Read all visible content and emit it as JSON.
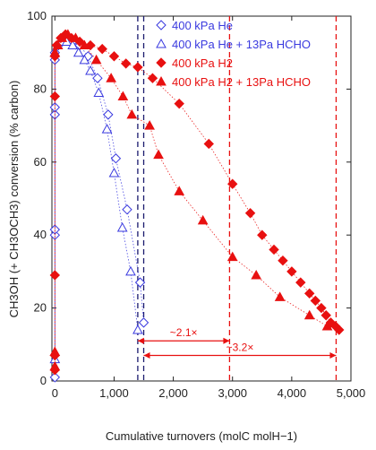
{
  "chart_data": {
    "type": "scatter",
    "xlabel": "Cumulative turnovers (molC molH−1)",
    "ylabel": "CH3OH (+ CH3OCH3) conversion (% carbon)",
    "xlim": [
      -50,
      5000
    ],
    "ylim": [
      0,
      100
    ],
    "x_ticks": [
      0,
      1000,
      2000,
      3000,
      4000,
      5000
    ],
    "x_tick_labels": [
      "0",
      "1,000",
      "2,000",
      "3,000",
      "4,000",
      "5,000"
    ],
    "y_ticks": [
      0,
      20,
      40,
      60,
      80,
      100
    ],
    "y_tick_labels": [
      "0",
      "20",
      "40",
      "60",
      "80",
      "100"
    ],
    "grid": false,
    "legend_position": "top-right",
    "series": [
      {
        "name": "400 kPa He",
        "marker": "diamond-open",
        "color": "#3a3adf",
        "points": [
          [
            0,
            1
          ],
          [
            0,
            40
          ],
          [
            0,
            41.5
          ],
          [
            0,
            73
          ],
          [
            0,
            75
          ],
          [
            0,
            88
          ],
          [
            0,
            90
          ],
          [
            60,
            92
          ],
          [
            120,
            94
          ],
          [
            200,
            94
          ],
          [
            300,
            93
          ],
          [
            420,
            92
          ],
          [
            560,
            89
          ],
          [
            720,
            83
          ],
          [
            900,
            73
          ],
          [
            1030,
            61
          ],
          [
            1220,
            47
          ],
          [
            1440,
            27
          ],
          [
            1500,
            16
          ]
        ]
      },
      {
        "name": "400 kPa He + 13Pa HCHO",
        "marker": "triangle-open",
        "color": "#3a3adf",
        "points": [
          [
            0,
            6
          ],
          [
            0,
            90
          ],
          [
            50,
            92
          ],
          [
            120,
            93
          ],
          [
            200,
            93
          ],
          [
            300,
            92
          ],
          [
            400,
            90
          ],
          [
            500,
            88
          ],
          [
            600,
            85
          ],
          [
            740,
            79
          ],
          [
            880,
            69
          ],
          [
            1000,
            57
          ],
          [
            1140,
            42
          ],
          [
            1280,
            30
          ],
          [
            1400,
            14
          ]
        ]
      },
      {
        "name": "400 kPa H2",
        "marker": "diamond-filled",
        "color": "#e81010",
        "points": [
          [
            0,
            3
          ],
          [
            0,
            7
          ],
          [
            0,
            29
          ],
          [
            0,
            78
          ],
          [
            0,
            89
          ],
          [
            30,
            92
          ],
          [
            100,
            94
          ],
          [
            180,
            95
          ],
          [
            280,
            94
          ],
          [
            420,
            93
          ],
          [
            600,
            92
          ],
          [
            800,
            91
          ],
          [
            1000,
            89
          ],
          [
            1200,
            87
          ],
          [
            1400,
            86
          ],
          [
            1650,
            83
          ],
          [
            2100,
            76
          ],
          [
            2600,
            65
          ],
          [
            3000,
            54
          ],
          [
            3300,
            46
          ],
          [
            3500,
            40
          ],
          [
            3700,
            36
          ],
          [
            3850,
            33
          ],
          [
            4000,
            30
          ],
          [
            4150,
            27
          ],
          [
            4300,
            24
          ],
          [
            4400,
            22
          ],
          [
            4500,
            20
          ],
          [
            4580,
            18
          ],
          [
            4660,
            16
          ],
          [
            4740,
            15
          ],
          [
            4800,
            14
          ]
        ]
      },
      {
        "name": "400 kPa H2 + 13Pa HCHO",
        "marker": "triangle-filled",
        "color": "#e81010",
        "points": [
          [
            0,
            4
          ],
          [
            0,
            8
          ],
          [
            0,
            90
          ],
          [
            50,
            92
          ],
          [
            120,
            94
          ],
          [
            220,
            95
          ],
          [
            350,
            94
          ],
          [
            500,
            92
          ],
          [
            700,
            88
          ],
          [
            950,
            83
          ],
          [
            1150,
            78
          ],
          [
            1300,
            73
          ],
          [
            1600,
            70
          ],
          [
            1750,
            62
          ],
          [
            2100,
            52
          ],
          [
            2500,
            44
          ],
          [
            3000,
            34
          ],
          [
            3400,
            29
          ],
          [
            3800,
            23
          ],
          [
            4300,
            18
          ],
          [
            4600,
            15
          ]
        ]
      }
    ],
    "dashed_lines": [
      {
        "x": 1400,
        "color": "#1a1a6e"
      },
      {
        "x": 1500,
        "color": "#1a1a6e"
      },
      {
        "x": 2950,
        "color": "#e81010"
      },
      {
        "x": 4750,
        "color": "#e81010"
      }
    ],
    "annotations": [
      {
        "label": "~2.1×",
        "x_from": 1400,
        "x_to": 2950,
        "y": 11,
        "color": "#e81010"
      },
      {
        "label": "~3.2×",
        "x_from": 1500,
        "x_to": 4750,
        "y": 7,
        "color": "#e81010"
      }
    ]
  }
}
